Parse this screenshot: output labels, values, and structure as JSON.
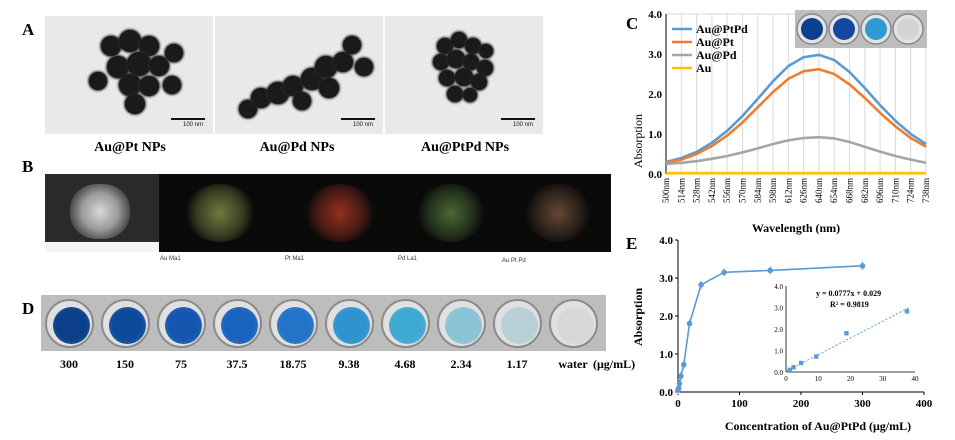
{
  "panels": {
    "a": "A",
    "b": "B",
    "c": "C",
    "d": "D",
    "e": "E"
  },
  "tem": [
    {
      "caption": "Au@Pt NPs",
      "scale": "100 nm"
    },
    {
      "caption": "Au@Pd NPs",
      "scale": "100 nm"
    },
    {
      "caption": "Au@PtPd NPs",
      "scale": "100 nm"
    }
  ],
  "maps": [
    {
      "label": "",
      "color": "#bfbfbf"
    },
    {
      "label": "Au Ma1",
      "color": "#c8d36a"
    },
    {
      "label": "Pt Ma1",
      "color": "#d0402a"
    },
    {
      "label": "Pd La1",
      "color": "#7fb85a"
    },
    {
      "label": "Au Pt Pd",
      "color": "#b07a5c"
    }
  ],
  "wells": {
    "concentrations": [
      "300",
      "150",
      "75",
      "37.5",
      "18.75",
      "9.38",
      "4.68",
      "2.34",
      "1.17",
      "water"
    ],
    "colors": [
      "#0b3f8a",
      "#0e4a9c",
      "#1456b0",
      "#1a63bd",
      "#2274c8",
      "#2f93cf",
      "#3ea9d3",
      "#8bc3d6",
      "#b8cfd6",
      "#d8d8d8"
    ],
    "unit": "(μg/mL)"
  },
  "chart_c": {
    "type": "line",
    "xlabel": "Wavelength (nm)",
    "ylabel": "Absorption",
    "ylim": [
      0,
      4.0
    ],
    "yticks": [
      "0.0",
      "1.0",
      "2.0",
      "3.0",
      "4.0"
    ],
    "xticks": [
      "500nm",
      "514nm",
      "528nm",
      "542nm",
      "556nm",
      "570nm",
      "584nm",
      "598nm",
      "612nm",
      "626nm",
      "640nm",
      "654nm",
      "668nm",
      "682nm",
      "696nm",
      "710nm",
      "724nm",
      "738nm"
    ],
    "legend": [
      "Au@PtPd",
      "Au@Pt",
      "Au@Pd",
      "Au"
    ],
    "series_colors": [
      "#5b9bd5",
      "#ed7d31",
      "#a5a5a5",
      "#ffc000"
    ],
    "inset_colors": [
      "#0d3f8f",
      "#1448a0",
      "#2e9ad0",
      "#d4d4d4"
    ]
  },
  "chart_data": [
    {
      "type": "line",
      "xlabel": "Wavelength (nm)",
      "ylabel": "Absorption",
      "ylim": [
        0,
        4.0
      ],
      "x": [
        500,
        514,
        528,
        542,
        556,
        570,
        584,
        598,
        612,
        626,
        640,
        654,
        668,
        682,
        696,
        710,
        724,
        738
      ],
      "series": [
        {
          "name": "Au@PtPd",
          "values": [
            0.3,
            0.4,
            0.55,
            0.78,
            1.08,
            1.45,
            1.88,
            2.32,
            2.7,
            2.92,
            2.98,
            2.85,
            2.55,
            2.15,
            1.72,
            1.33,
            1.0,
            0.75
          ]
        },
        {
          "name": "Au@Pt",
          "values": [
            0.28,
            0.36,
            0.5,
            0.7,
            0.96,
            1.29,
            1.67,
            2.05,
            2.38,
            2.57,
            2.62,
            2.5,
            2.24,
            1.9,
            1.53,
            1.19,
            0.9,
            0.68
          ]
        },
        {
          "name": "Au@Pd",
          "values": [
            0.25,
            0.28,
            0.32,
            0.38,
            0.45,
            0.54,
            0.64,
            0.75,
            0.84,
            0.9,
            0.92,
            0.89,
            0.8,
            0.68,
            0.56,
            0.45,
            0.36,
            0.28
          ]
        },
        {
          "name": "Au",
          "values": [
            0.02,
            0.02,
            0.02,
            0.02,
            0.02,
            0.02,
            0.02,
            0.02,
            0.02,
            0.02,
            0.02,
            0.02,
            0.02,
            0.02,
            0.02,
            0.02,
            0.02,
            0.02
          ]
        }
      ]
    },
    {
      "type": "scatter",
      "xlabel": "Concentration of Au@PtPd (μg/mL)",
      "ylabel": "Absorption",
      "xlim": [
        0,
        400
      ],
      "ylim": [
        0,
        4.0
      ],
      "xticks": [
        "0",
        "100",
        "200",
        "300",
        "400"
      ],
      "yticks": [
        "0.0",
        "1.0",
        "2.0",
        "3.0",
        "4.0"
      ],
      "x": [
        0,
        1.17,
        2.34,
        4.68,
        9.38,
        18.75,
        37.5,
        75,
        150,
        300
      ],
      "values": [
        0.05,
        0.1,
        0.22,
        0.42,
        0.72,
        1.8,
        2.82,
        3.15,
        3.2,
        3.32
      ],
      "inset": {
        "xlim": [
          0,
          40
        ],
        "ylim": [
          0,
          4.0
        ],
        "xticks": [
          "0",
          "10",
          "20",
          "30",
          "40"
        ],
        "yticks": [
          "0.0",
          "1.0",
          "2.0",
          "3.0",
          "4.0"
        ],
        "x": [
          1.17,
          2.34,
          4.68,
          9.38,
          18.75,
          37.5
        ],
        "values": [
          0.1,
          0.22,
          0.42,
          0.72,
          1.8,
          2.82
        ],
        "equation": "y = 0.0777x + 0.029",
        "r2": "R² = 0.9819"
      }
    }
  ]
}
